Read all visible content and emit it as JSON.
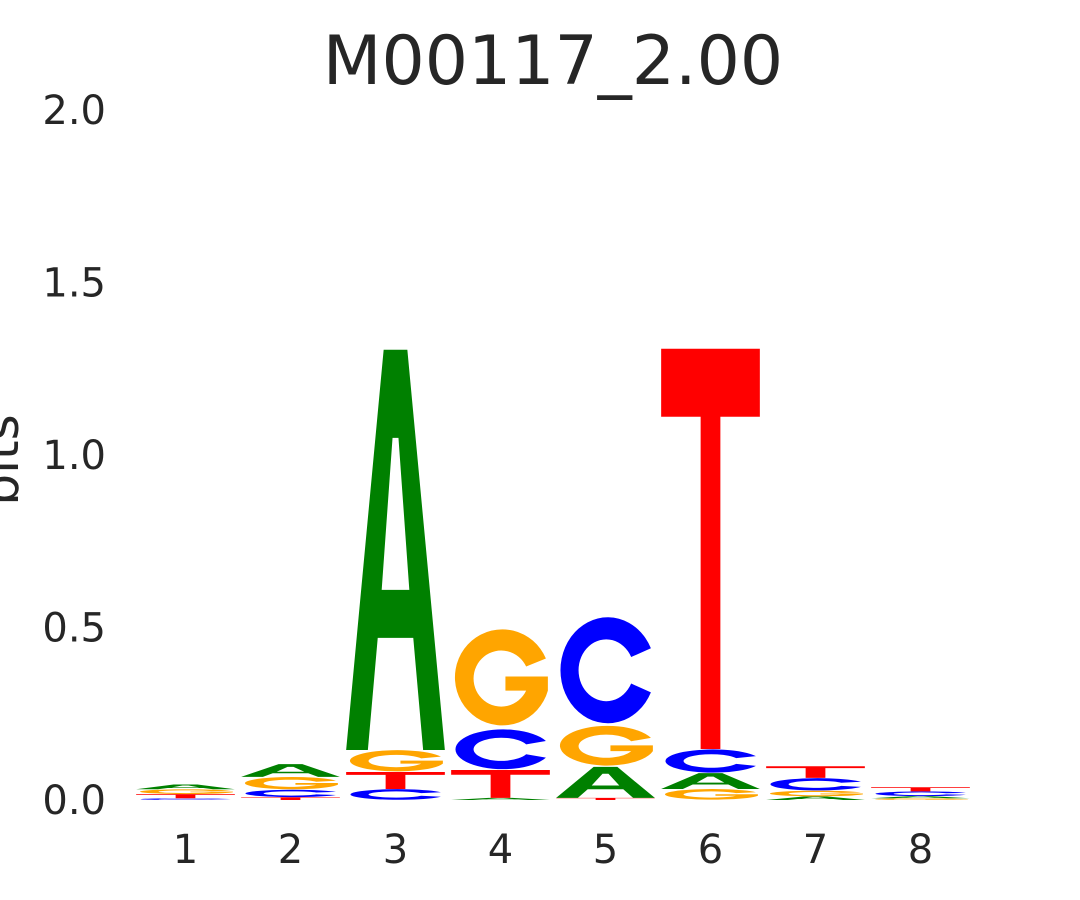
{
  "chart_data": {
    "type": "sequence-logo",
    "title": "M00117_2.00",
    "ylabel": "bits",
    "ylim": [
      0,
      2.0
    ],
    "yticks": [
      "0.0",
      "0.5",
      "1.0",
      "1.5",
      "2.0"
    ],
    "xticks": [
      "1",
      "2",
      "3",
      "4",
      "5",
      "6",
      "7",
      "8"
    ],
    "letter_colors": {
      "A": "#008000",
      "C": "#0000ff",
      "G": "#ffa500",
      "T": "#ff0000"
    },
    "positions": [
      {
        "position": "1",
        "stack": [
          {
            "letter": "C",
            "bits": 0.005
          },
          {
            "letter": "T",
            "bits": 0.012
          },
          {
            "letter": "G",
            "bits": 0.014
          },
          {
            "letter": "A",
            "bits": 0.014
          }
        ]
      },
      {
        "position": "2",
        "stack": [
          {
            "letter": "T",
            "bits": 0.008
          },
          {
            "letter": "C",
            "bits": 0.022
          },
          {
            "letter": "G",
            "bits": 0.037
          },
          {
            "letter": "A",
            "bits": 0.037
          }
        ]
      },
      {
        "position": "3",
        "stack": [
          {
            "letter": "C",
            "bits": 0.032
          },
          {
            "letter": "T",
            "bits": 0.049
          },
          {
            "letter": "G",
            "bits": 0.064
          },
          {
            "letter": "A",
            "bits": 1.16
          }
        ]
      },
      {
        "position": "4",
        "stack": [
          {
            "letter": "A",
            "bits": 0.006
          },
          {
            "letter": "T",
            "bits": 0.081
          },
          {
            "letter": "C",
            "bits": 0.12
          },
          {
            "letter": "G",
            "bits": 0.29
          }
        ]
      },
      {
        "position": "5",
        "stack": [
          {
            "letter": "T",
            "bits": 0.006
          },
          {
            "letter": "A",
            "bits": 0.09
          },
          {
            "letter": "G",
            "bits": 0.12
          },
          {
            "letter": "C",
            "bits": 0.32
          }
        ]
      },
      {
        "position": "6",
        "stack": [
          {
            "letter": "G",
            "bits": 0.032
          },
          {
            "letter": "A",
            "bits": 0.046
          },
          {
            "letter": "C",
            "bits": 0.07
          },
          {
            "letter": "T",
            "bits": 1.16
          }
        ]
      },
      {
        "position": "7",
        "stack": [
          {
            "letter": "A",
            "bits": 0.01
          },
          {
            "letter": "G",
            "bits": 0.017
          },
          {
            "letter": "C",
            "bits": 0.037
          },
          {
            "letter": "T",
            "bits": 0.034
          }
        ]
      },
      {
        "position": "8",
        "stack": [
          {
            "letter": "G",
            "bits": 0.005
          },
          {
            "letter": "A",
            "bits": 0.006
          },
          {
            "letter": "C",
            "bits": 0.014
          },
          {
            "letter": "T",
            "bits": 0.012
          }
        ]
      }
    ]
  }
}
